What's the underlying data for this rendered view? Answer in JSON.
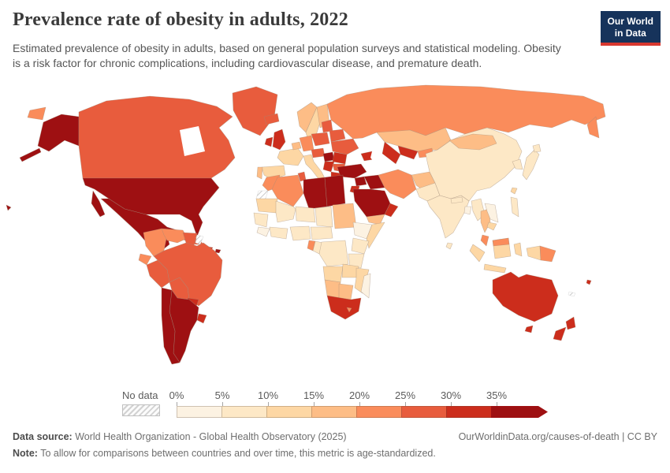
{
  "header": {
    "title": "Prevalence rate of obesity in adults, 2022",
    "subtitle": "Estimated prevalence of obesity in adults, based on general population surveys and statistical modeling. Obesity is a risk factor for chronic complications, including cardiovascular disease, and premature death.",
    "logo": {
      "line1": "Our World",
      "line2": "in Data"
    }
  },
  "legend": {
    "no_data_label": "No data",
    "tick_labels": [
      "0%",
      "5%",
      "10%",
      "15%",
      "20%",
      "25%",
      "30%",
      "35%"
    ],
    "bin_colors": [
      "#fcf2e2",
      "#fde8c6",
      "#fdd7a4",
      "#fdbd86",
      "#fa8c5b",
      "#e85c3d",
      "#cc2d1c",
      "#9e1012"
    ],
    "no_data_swatch_bg": "#fbfbfb",
    "no_data_swatch_stripe": "#d2d2d2"
  },
  "footer": {
    "data_source_label": "Data source:",
    "data_source_text": " World Health Organization - Global Health Observatory (2025)",
    "attribution": "OurWorldinData.org/causes-of-death | CC BY",
    "note_label": "Note:",
    "note_text": " To allow for comparisons between countries and over time, this metric is age-standardized."
  },
  "chart_data": {
    "type": "heatmap",
    "subtype": "world-choropleth",
    "title": "Prevalence rate of obesity in adults, 2022",
    "unit": "% of adults",
    "legend_bins": [
      "0-5%",
      "5-10%",
      "10-15%",
      "15-20%",
      "20-25%",
      "25-30%",
      "30-35%",
      "35%+"
    ],
    "no_data_value": "no-data",
    "countries": {
      "united-states": "35%+",
      "canada": "25-30%",
      "greenland": "25-30%",
      "mexico": "35%+",
      "guatemala": "35%+",
      "nicaragua-honduras": "20-25%",
      "costa-rica-panama": "30-35%",
      "cuba": "25-30%",
      "haiti-dominican-republic": "30-35%",
      "puerto-rico": "35%+",
      "colombia": "20-25%",
      "venezuela": "20-25%",
      "guyana-suriname": "25-30%",
      "french-guiana": "no-data",
      "ecuador": "20-25%",
      "peru": "25-30%",
      "brazil": "25-30%",
      "bolivia": "25-30%",
      "paraguay": "30-35%",
      "uruguay": "30-35%",
      "argentina": "35%+",
      "chile": "35%+",
      "iceland": "25-30%",
      "norway": "15-20%",
      "sweden": "10-15%",
      "finland": "15-20%",
      "denmark": "20-25%",
      "united-kingdom": "30-35%",
      "ireland": "30-35%",
      "france": "10-15%",
      "belgium-netherlands": "15-20%",
      "germany": "20-25%",
      "poland": "25-30%",
      "baltic-states": "25-30%",
      "belarus": "25-30%",
      "ukraine": "25-30%",
      "czechia-austria": "25-30%",
      "hungary": "35%+",
      "romania": "30-35%",
      "serbia-balkans": "30-35%",
      "bulgaria": "25-30%",
      "italy": "10-15%",
      "spain": "10-15%",
      "portugal": "15-20%",
      "greece": "30-35%",
      "turkey": "35%+",
      "russia": "20-25%",
      "kazakhstan": "15-20%",
      "uzbekistan": "30-35%",
      "turkmenistan": "30-35%",
      "kyrgyzstan-tajikistan": "20-25%",
      "caucasus": "30-35%",
      "syria": "35%+",
      "jordan-israel": "30-35%",
      "iraq": "35%+",
      "iran": "20-25%",
      "saudi-arabia": "35%+",
      "yemen": "15-20%",
      "oman-uae": "30-35%",
      "afghanistan": "15-20%",
      "pakistan": "5-10%",
      "india": "5-10%",
      "sri-lanka": "5-10%",
      "bangladesh": "0-5%",
      "nepal": "5-10%",
      "china": "5-10%",
      "mongolia": "15-20%",
      "north-south-korea": "5-10%",
      "japan": "5-10%",
      "taiwan": "10-15%",
      "myanmar": "5-10%",
      "thailand": "15-20%",
      "vietnam-laos": "0-5%",
      "cambodia": "10-15%",
      "malaysia": "20-25%",
      "indonesia": "10-15%",
      "philippines": "5-10%",
      "papua-new-guinea": "20-25%",
      "australia": "30-35%",
      "new-zealand": "30-35%",
      "fiji": "30-35%",
      "new-caledonia": "no-data",
      "morocco": "20-25%",
      "western-sahara": "no-data",
      "algeria": "20-25%",
      "tunisia": "25-30%",
      "libya": "35%+",
      "egypt": "35%+",
      "mauritania": "10-15%",
      "mali": "5-10%",
      "niger": "5-10%",
      "chad": "5-10%",
      "sudan": "15-20%",
      "senegal-guinea": "5-10%",
      "sierra-leone-liberia": "0-5%",
      "cote-divoire-ghana": "5-10%",
      "nigeria": "5-10%",
      "cameroon-car": "5-10%",
      "ethiopia": "0-5%",
      "somalia": "10-15%",
      "kenya-uganda": "5-10%",
      "gabon": "20-25%",
      "congo": "5-10%",
      "dr-congo": "5-10%",
      "tanzania": "5-10%",
      "angola": "10-15%",
      "zambia": "10-15%",
      "mozambique-zimbabwe": "10-15%",
      "namibia": "15-20%",
      "botswana": "15-20%",
      "south-africa": "30-35%",
      "lesotho": "20-25%",
      "madagascar": "0-5%"
    }
  }
}
